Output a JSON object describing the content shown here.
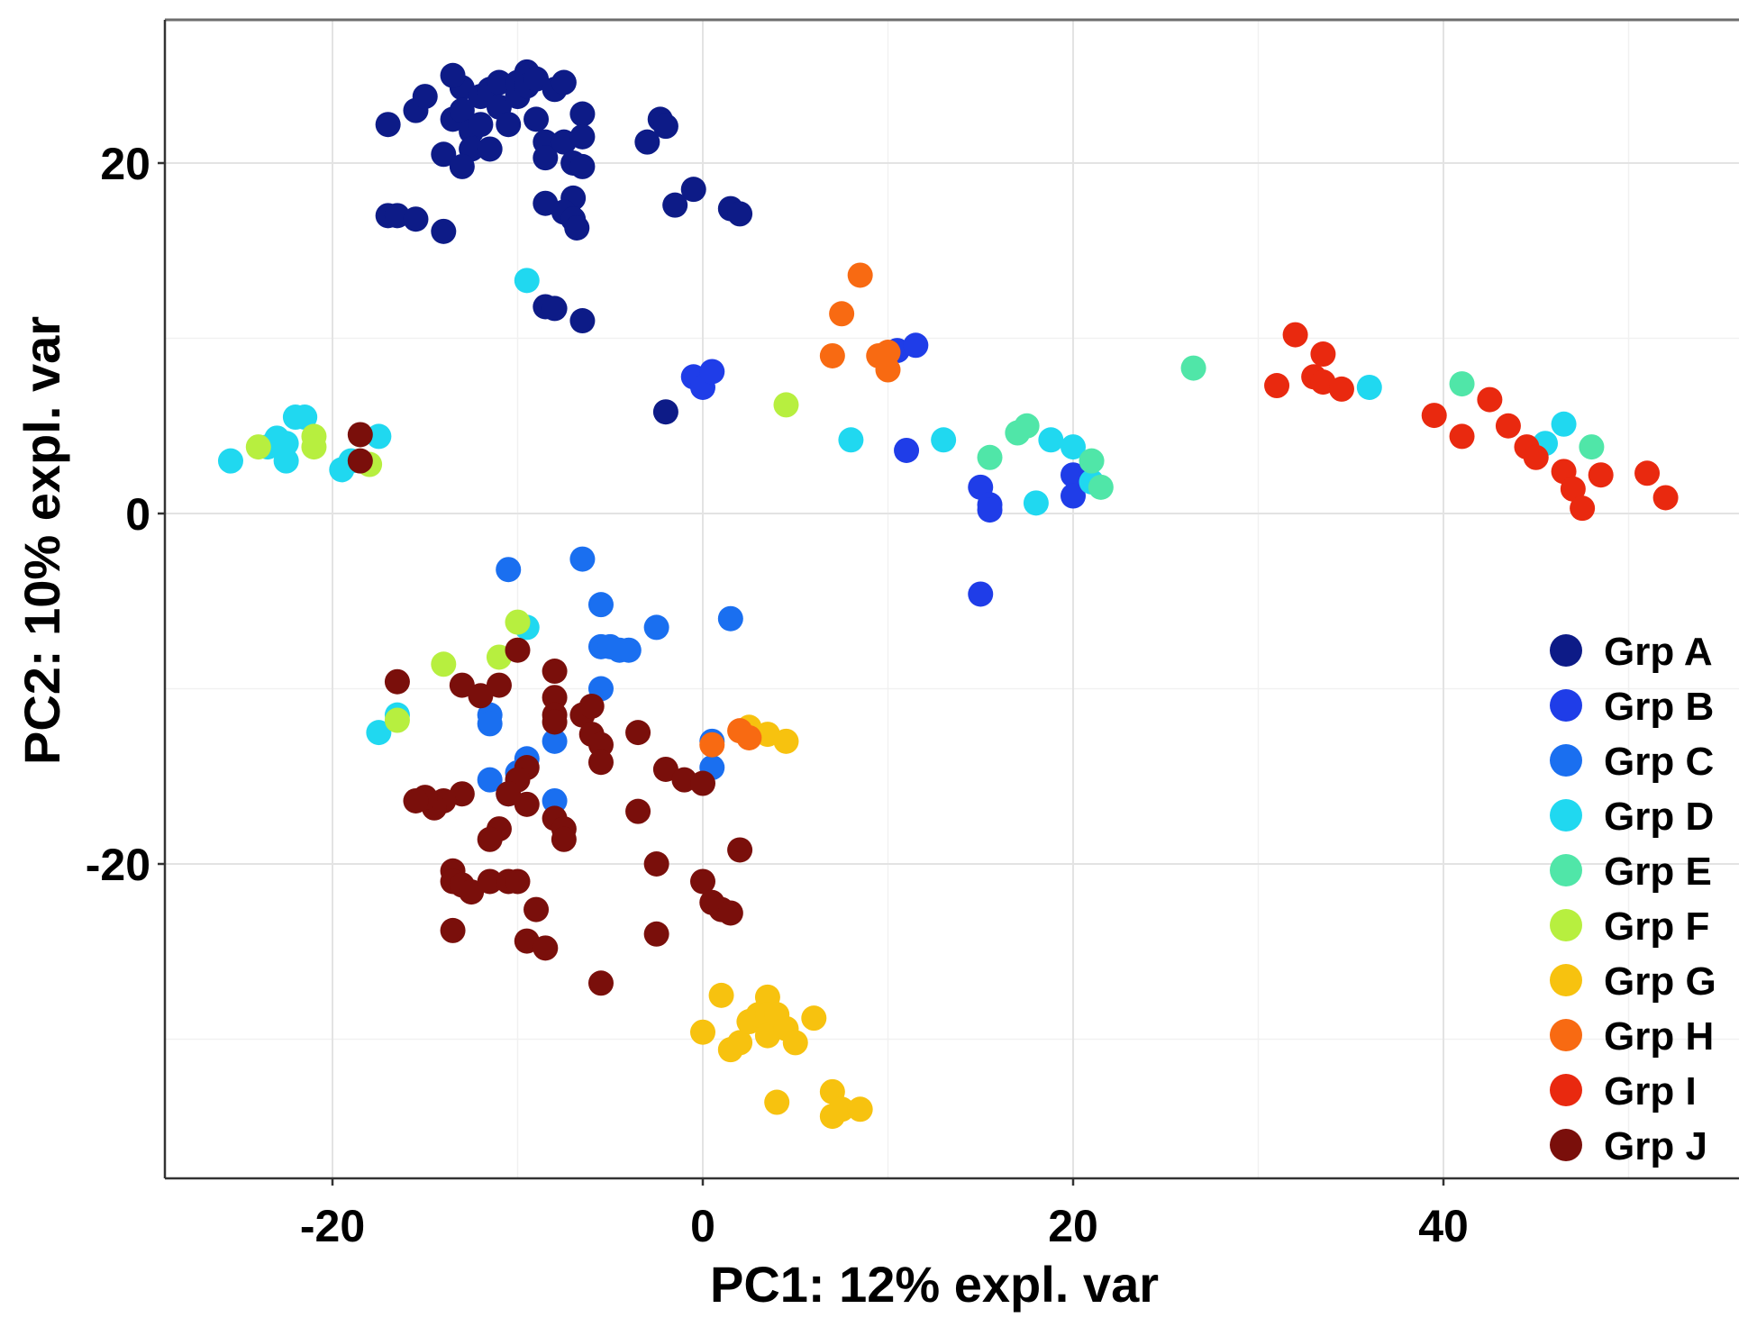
{
  "chart_data": {
    "type": "scatter",
    "title": "",
    "xlabel": "PC1: 12% expl. var",
    "ylabel": "PC2: 10% expl. var",
    "xlim": [
      -29,
      56
    ],
    "ylim": [
      -38,
      28
    ],
    "xticks": [
      -20,
      0,
      20,
      40
    ],
    "yticks": [
      -20,
      0,
      20
    ],
    "xtick_labels": [
      "-20",
      "0",
      "20",
      "40"
    ],
    "ytick_labels": [
      "-20",
      "0",
      "20"
    ],
    "grid": true,
    "legend_position": "bottom-right",
    "series": [
      {
        "name": "Grp A",
        "color": "#0d1b87",
        "points": [
          [
            -17,
            22.2
          ],
          [
            -15.5,
            23
          ],
          [
            -15,
            23.8
          ],
          [
            -14,
            20.5
          ],
          [
            -13.5,
            22.5
          ],
          [
            -13,
            24.3
          ],
          [
            -13,
            23
          ],
          [
            -12.5,
            21.8
          ],
          [
            -12.5,
            20.8
          ],
          [
            -12,
            23.8
          ],
          [
            -12,
            22.2
          ],
          [
            -11.5,
            24.2
          ],
          [
            -11.5,
            20.8
          ],
          [
            -11,
            24.6
          ],
          [
            -11,
            23.2
          ],
          [
            -10.5,
            22.2
          ],
          [
            -10,
            24.6
          ],
          [
            -10,
            23.8
          ],
          [
            -9.5,
            25.2
          ],
          [
            -9.5,
            24.4
          ],
          [
            -9,
            24.8
          ],
          [
            -9,
            22.5
          ],
          [
            -8.5,
            21.2
          ],
          [
            -8.5,
            20.3
          ],
          [
            -8,
            24.2
          ],
          [
            -7.5,
            24.6
          ],
          [
            -7.5,
            21.2
          ],
          [
            -7,
            20
          ],
          [
            -7,
            18
          ],
          [
            -6.5,
            22.8
          ],
          [
            -6.5,
            21.5
          ],
          [
            -6.5,
            19.8
          ],
          [
            -7.5,
            17.2
          ],
          [
            -7,
            16.8
          ],
          [
            -6.8,
            16.3
          ],
          [
            -8.5,
            17.7
          ],
          [
            -13.5,
            25
          ],
          [
            -13,
            19.8
          ],
          [
            -17,
            17
          ],
          [
            -16.5,
            17
          ],
          [
            -15.5,
            16.8
          ],
          [
            -14,
            16.1
          ],
          [
            -3,
            21.2
          ],
          [
            -2.3,
            22.5
          ],
          [
            -2,
            22.1
          ],
          [
            -1.5,
            17.6
          ],
          [
            -0.5,
            18.5
          ],
          [
            1.5,
            17.4
          ],
          [
            2,
            17.1
          ],
          [
            -8.5,
            11.8
          ],
          [
            -8,
            11.7
          ],
          [
            -6.5,
            11
          ],
          [
            -2,
            5.8
          ]
        ]
      },
      {
        "name": "Grp B",
        "color": "#1f3de8",
        "points": [
          [
            -0.5,
            7.8
          ],
          [
            0,
            7.2
          ],
          [
            0.5,
            8.1
          ],
          [
            10.5,
            9.3
          ],
          [
            11.5,
            9.6
          ],
          [
            11,
            3.6
          ],
          [
            15,
            1.5
          ],
          [
            15.5,
            0.5
          ],
          [
            15.5,
            0.2
          ],
          [
            20,
            2.2
          ],
          [
            20,
            1
          ],
          [
            15,
            -4.6
          ]
        ]
      },
      {
        "name": "Grp C",
        "color": "#1a6ff0",
        "points": [
          [
            -10.5,
            -3.2
          ],
          [
            -6.5,
            -2.6
          ],
          [
            -5.5,
            -5.2
          ],
          [
            -2.5,
            -6.5
          ],
          [
            1.5,
            -6
          ],
          [
            -5.5,
            -7.6
          ],
          [
            -5,
            -7.6
          ],
          [
            -4.5,
            -7.8
          ],
          [
            -4,
            -7.8
          ],
          [
            -5.5,
            -10
          ],
          [
            -11.5,
            -11.5
          ],
          [
            -11.5,
            -12
          ],
          [
            -8,
            -13
          ],
          [
            -9.5,
            -14
          ],
          [
            -10,
            -14.8
          ],
          [
            -11.5,
            -15.2
          ],
          [
            -10.5,
            -16
          ],
          [
            -8,
            -16.4
          ],
          [
            0.5,
            -13
          ],
          [
            0.5,
            -14.5
          ]
        ]
      },
      {
        "name": "Grp D",
        "color": "#20d8f0",
        "points": [
          [
            -25.5,
            3
          ],
          [
            -23.5,
            3.8
          ],
          [
            -23,
            4.3
          ],
          [
            -22.5,
            3
          ],
          [
            -22.5,
            4
          ],
          [
            -22,
            5.5
          ],
          [
            -21.5,
            5.5
          ],
          [
            -19.5,
            2.5
          ],
          [
            -19,
            3
          ],
          [
            -17.5,
            4.4
          ],
          [
            -9.5,
            13.3
          ],
          [
            8,
            4.2
          ],
          [
            13,
            4.2
          ],
          [
            18,
            0.6
          ],
          [
            18.8,
            4.2
          ],
          [
            20,
            3.8
          ],
          [
            21,
            1.8
          ],
          [
            36,
            7.2
          ],
          [
            45.5,
            4
          ],
          [
            46.5,
            5.1
          ],
          [
            -17.5,
            -12.5
          ],
          [
            -16.5,
            -11.5
          ],
          [
            -9.5,
            -6.5
          ]
        ]
      },
      {
        "name": "Grp E",
        "color": "#50e6a8",
        "points": [
          [
            15.5,
            3.2
          ],
          [
            17,
            4.6
          ],
          [
            17.5,
            5
          ],
          [
            21,
            3
          ],
          [
            21.5,
            1.5
          ],
          [
            26.5,
            8.3
          ],
          [
            41,
            7.4
          ],
          [
            48,
            3.8
          ]
        ]
      },
      {
        "name": "Grp F",
        "color": "#b7ef3f",
        "points": [
          [
            -24,
            3.8
          ],
          [
            -21,
            4.4
          ],
          [
            -21,
            3.8
          ],
          [
            -18,
            2.8
          ],
          [
            -14,
            -8.6
          ],
          [
            -11,
            -8.2
          ],
          [
            -10,
            -6.2
          ],
          [
            -16.5,
            -11.8
          ],
          [
            4.5,
            6.2
          ]
        ]
      },
      {
        "name": "Grp G",
        "color": "#f7c20f",
        "points": [
          [
            1,
            -27.5
          ],
          [
            0,
            -29.6
          ],
          [
            1.5,
            -30.6
          ],
          [
            2,
            -30.2
          ],
          [
            2.5,
            -29
          ],
          [
            3,
            -28.6
          ],
          [
            3.5,
            -27.6
          ],
          [
            3.5,
            -28.6
          ],
          [
            3.5,
            -29.8
          ],
          [
            4,
            -28.6
          ],
          [
            4.5,
            -29.4
          ],
          [
            5,
            -30.2
          ],
          [
            6,
            -28.8
          ],
          [
            7,
            -33
          ],
          [
            7,
            -34.4
          ],
          [
            7.5,
            -34
          ],
          [
            8.5,
            -34
          ],
          [
            4,
            -33.6
          ],
          [
            2.5,
            -12.2
          ],
          [
            3.5,
            -12.6
          ],
          [
            4.5,
            -13
          ]
        ]
      },
      {
        "name": "Grp H",
        "color": "#f86a12",
        "points": [
          [
            8.5,
            13.6
          ],
          [
            7.5,
            11.4
          ],
          [
            7,
            9
          ],
          [
            9.5,
            9
          ],
          [
            10,
            9.2
          ],
          [
            10,
            8.2
          ],
          [
            0.5,
            -13.2
          ],
          [
            2,
            -12.4
          ],
          [
            2.5,
            -12.8
          ]
        ]
      },
      {
        "name": "Grp I",
        "color": "#e9290f",
        "points": [
          [
            32,
            10.2
          ],
          [
            31,
            7.3
          ],
          [
            33,
            7.8
          ],
          [
            33.5,
            9.1
          ],
          [
            33.5,
            7.5
          ],
          [
            34.5,
            7.1
          ],
          [
            39.5,
            5.6
          ],
          [
            41,
            4.4
          ],
          [
            42.5,
            6.5
          ],
          [
            43.5,
            5
          ],
          [
            44.5,
            3.8
          ],
          [
            45,
            3.2
          ],
          [
            46.5,
            2.4
          ],
          [
            47,
            1.4
          ],
          [
            47.5,
            0.3
          ],
          [
            48.5,
            2.2
          ],
          [
            51,
            2.3
          ],
          [
            52,
            0.9
          ]
        ]
      },
      {
        "name": "Grp J",
        "color": "#7a0f0b",
        "points": [
          [
            -18.5,
            4.5
          ],
          [
            -18.5,
            3
          ],
          [
            -16.5,
            -9.6
          ],
          [
            -13,
            -9.8
          ],
          [
            -12,
            -10.4
          ],
          [
            -11,
            -9.8
          ],
          [
            -10,
            -7.8
          ],
          [
            -8,
            -9
          ],
          [
            -8,
            -10.5
          ],
          [
            -8,
            -11.5
          ],
          [
            -8,
            -11.9
          ],
          [
            -6.5,
            -11.5
          ],
          [
            -6,
            -12.6
          ],
          [
            -5.5,
            -13.2
          ],
          [
            -5.5,
            -14.2
          ],
          [
            -6,
            -11
          ],
          [
            -3.5,
            -12.5
          ],
          [
            -9.5,
            -14.5
          ],
          [
            -10,
            -15.2
          ],
          [
            -10.5,
            -16
          ],
          [
            -9.5,
            -16.6
          ],
          [
            -8,
            -17.4
          ],
          [
            -7.5,
            -18
          ],
          [
            -7.5,
            -18.6
          ],
          [
            -11,
            -18
          ],
          [
            -11.5,
            -18.6
          ],
          [
            -13,
            -16
          ],
          [
            -14,
            -16.4
          ],
          [
            -14.5,
            -16.8
          ],
          [
            -15,
            -16.2
          ],
          [
            -15.5,
            -16.4
          ],
          [
            -3.5,
            -17
          ],
          [
            -2,
            -14.6
          ],
          [
            -1,
            -15.2
          ],
          [
            0,
            -15.4
          ],
          [
            -2.5,
            -20
          ],
          [
            -13.5,
            -20.4
          ],
          [
            -13.5,
            -21
          ],
          [
            -13,
            -21.2
          ],
          [
            -12.5,
            -21.6
          ],
          [
            -11.5,
            -21
          ],
          [
            -10.5,
            -21
          ],
          [
            -10,
            -21
          ],
          [
            -9,
            -22.6
          ],
          [
            -9.5,
            -24.4
          ],
          [
            -8.5,
            -24.8
          ],
          [
            -13.5,
            -23.8
          ],
          [
            -2.5,
            -24
          ],
          [
            -5.5,
            -26.8
          ],
          [
            0,
            -21
          ],
          [
            0.5,
            -22.2
          ],
          [
            1,
            -22.6
          ],
          [
            1.5,
            -22.8
          ],
          [
            2,
            -19.2
          ]
        ]
      }
    ]
  }
}
